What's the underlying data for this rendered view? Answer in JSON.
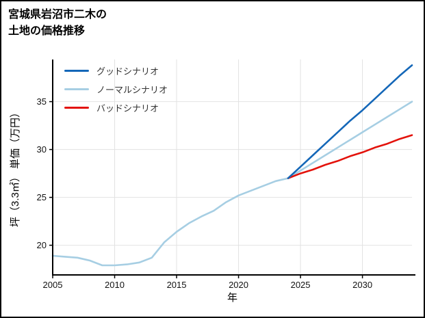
{
  "header": {
    "title_lines": [
      "宮城県岩沼市二木の",
      "土地の価格推移"
    ]
  },
  "chart_data": {
    "type": "line",
    "title": "宮城県岩沼市二木の土地の価格推移",
    "xlabel": "年",
    "ylabel": "坪（3.3㎡） 単価（万円）",
    "xlim": [
      2005,
      2034
    ],
    "ylim": [
      16.9,
      39.4
    ],
    "xticks": [
      2005,
      2010,
      2015,
      2020,
      2025,
      2030
    ],
    "yticks": [
      20,
      25,
      30,
      35
    ],
    "grid": true,
    "legend_position": "top-left",
    "colors": {
      "good": "#1467b8",
      "normal": "#a6cee3",
      "bad": "#e3120b",
      "gridline": "#e2e2e2",
      "axis": "#000000"
    },
    "series": [
      {
        "name": "グッドシナリオ",
        "color": "#1467b8",
        "x": [
          2024,
          2025,
          2026,
          2027,
          2028,
          2029,
          2030,
          2031,
          2032,
          2033,
          2034
        ],
        "values": [
          27.0,
          28.2,
          29.4,
          30.6,
          31.8,
          33.0,
          34.1,
          35.3,
          36.5,
          37.7,
          38.8
        ]
      },
      {
        "name": "ノーマルシナリオ",
        "color": "#a6cee3",
        "x": [
          2005,
          2006,
          2007,
          2008,
          2009,
          2010,
          2011,
          2012,
          2013,
          2014,
          2015,
          2016,
          2017,
          2018,
          2019,
          2020,
          2021,
          2022,
          2023,
          2024,
          2025,
          2026,
          2027,
          2028,
          2029,
          2030,
          2031,
          2032,
          2033,
          2034
        ],
        "values": [
          18.9,
          18.8,
          18.7,
          18.4,
          17.9,
          17.9,
          18.0,
          18.2,
          18.7,
          20.3,
          21.4,
          22.3,
          23.0,
          23.6,
          24.5,
          25.2,
          25.7,
          26.2,
          26.7,
          27.0,
          27.8,
          28.6,
          29.4,
          30.2,
          31.0,
          31.8,
          32.6,
          33.4,
          34.2,
          35.0
        ]
      },
      {
        "name": "バッドシナリオ",
        "color": "#e3120b",
        "x": [
          2024,
          2025,
          2026,
          2027,
          2028,
          2029,
          2030,
          2031,
          2032,
          2033,
          2034
        ],
        "values": [
          27.0,
          27.5,
          27.9,
          28.4,
          28.8,
          29.3,
          29.7,
          30.2,
          30.6,
          31.1,
          31.5
        ]
      }
    ]
  }
}
